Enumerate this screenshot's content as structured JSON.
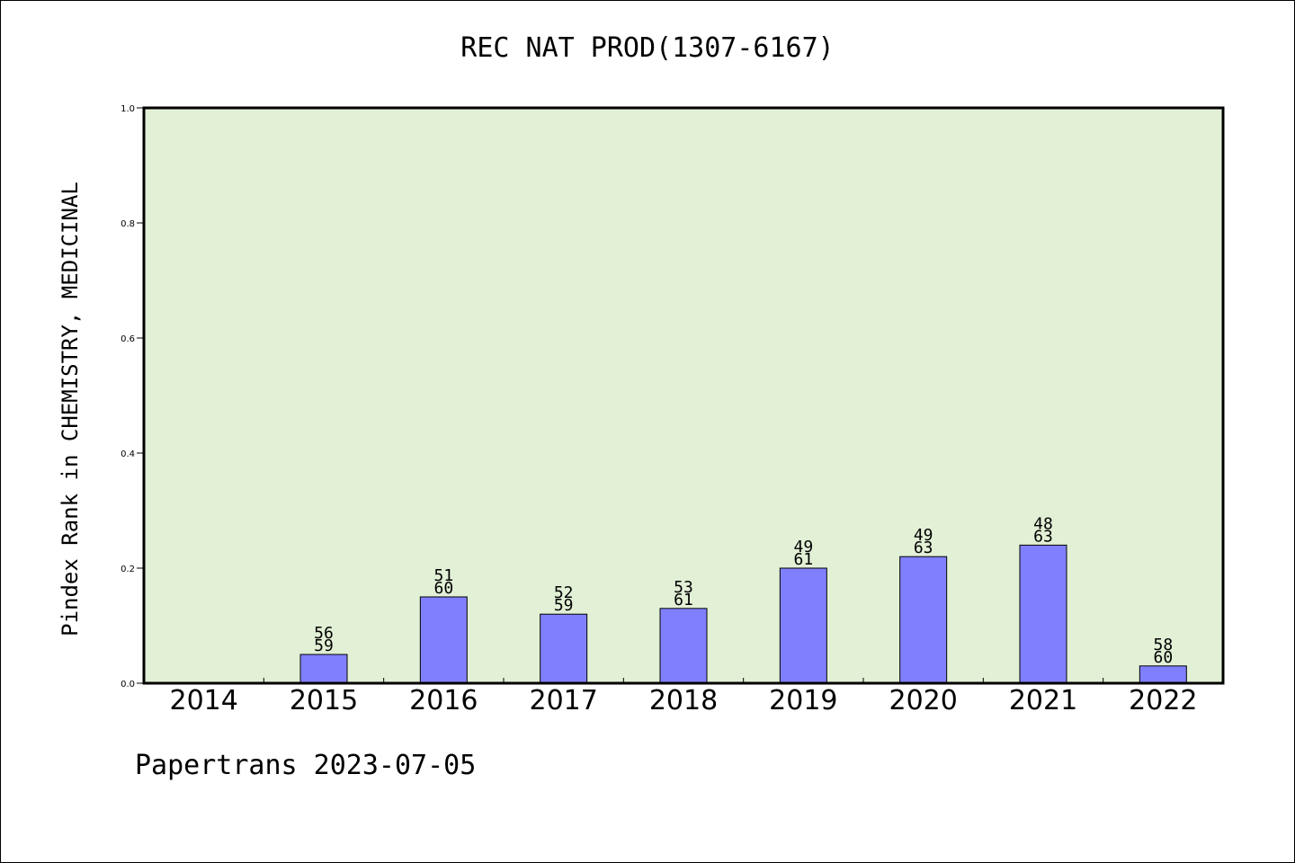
{
  "chart_data": {
    "type": "bar",
    "title": "REC NAT PROD(1307-6167)",
    "xlabel": "",
    "ylabel": "Pindex Rank in CHEMISTRY, MEDICINAL",
    "categories": [
      "2014",
      "2015",
      "2016",
      "2017",
      "2018",
      "2019",
      "2020",
      "2021",
      "2022"
    ],
    "values": [
      0,
      0.05,
      0.15,
      0.12,
      0.13,
      0.2,
      0.22,
      0.24,
      0.03
    ],
    "bar_labels_top": [
      "",
      "56",
      "51",
      "52",
      "53",
      "49",
      "49",
      "48",
      "58"
    ],
    "bar_labels_bottom": [
      "",
      "59",
      "60",
      "59",
      "61",
      "61",
      "63",
      "63",
      "60"
    ],
    "ylim": [
      0,
      1.0
    ],
    "yticks": [
      "0.0",
      "0.2",
      "0.4",
      "0.6",
      "0.8",
      "1.0"
    ],
    "grid": false,
    "legend": "none",
    "colors": {
      "plot_background": "#e2f0d6",
      "bar_fill": "#8080ff",
      "bar_stroke": "#000000"
    }
  },
  "footer": {
    "text": "Papertrans 2023-07-05"
  }
}
